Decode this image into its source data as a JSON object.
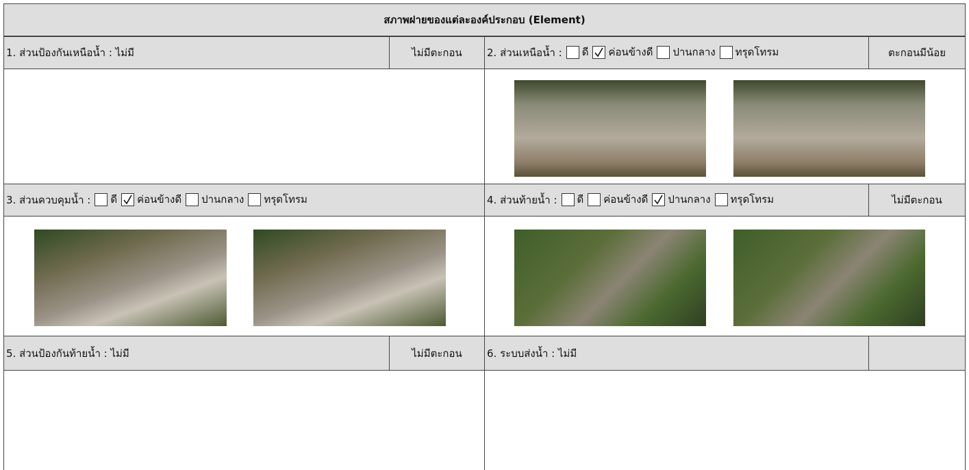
{
  "header": {
    "title": "สภาพฝายของแต่ละองค์ประกอบ (Element)"
  },
  "sections": [
    {
      "label": "1. ส่วนป้องกันเหนือน้ำ : ไม่มี",
      "status": "ไม่มีตะกอน"
    },
    {
      "label": "2. ส่วนเหนือน้ำ :",
      "options": [
        {
          "text": "ดี",
          "checked": false
        },
        {
          "text": "ค่อนข้างดี",
          "checked": true
        },
        {
          "text": "ปานกลาง",
          "checked": false
        },
        {
          "text": "ทรุดโทรม",
          "checked": false
        }
      ],
      "status": "ตะกอนมีน้อย"
    },
    {
      "label": "3. ส่วนควบคุมน้ำ :",
      "options": [
        {
          "text": "ดี",
          "checked": false
        },
        {
          "text": "ค่อนข้างดี",
          "checked": true
        },
        {
          "text": "ปานกลาง",
          "checked": false
        },
        {
          "text": "ทรุดโทรม",
          "checked": false
        }
      ]
    },
    {
      "label": "4. ส่วนท้ายน้ำ :",
      "options": [
        {
          "text": "ดี",
          "checked": false
        },
        {
          "text": "ค่อนข้างดี",
          "checked": false
        },
        {
          "text": "ปานกลาง",
          "checked": true
        },
        {
          "text": "ทรุดโทรม",
          "checked": false
        }
      ],
      "status": "ไม่มีตะกอน"
    },
    {
      "label": "5. ส่วนป้องกันท้ายน้ำ : ไม่มี",
      "status": "ไม่มีตะกอน"
    },
    {
      "label": "6. ระบบส่งน้ำ : ไม่มี"
    }
  ]
}
